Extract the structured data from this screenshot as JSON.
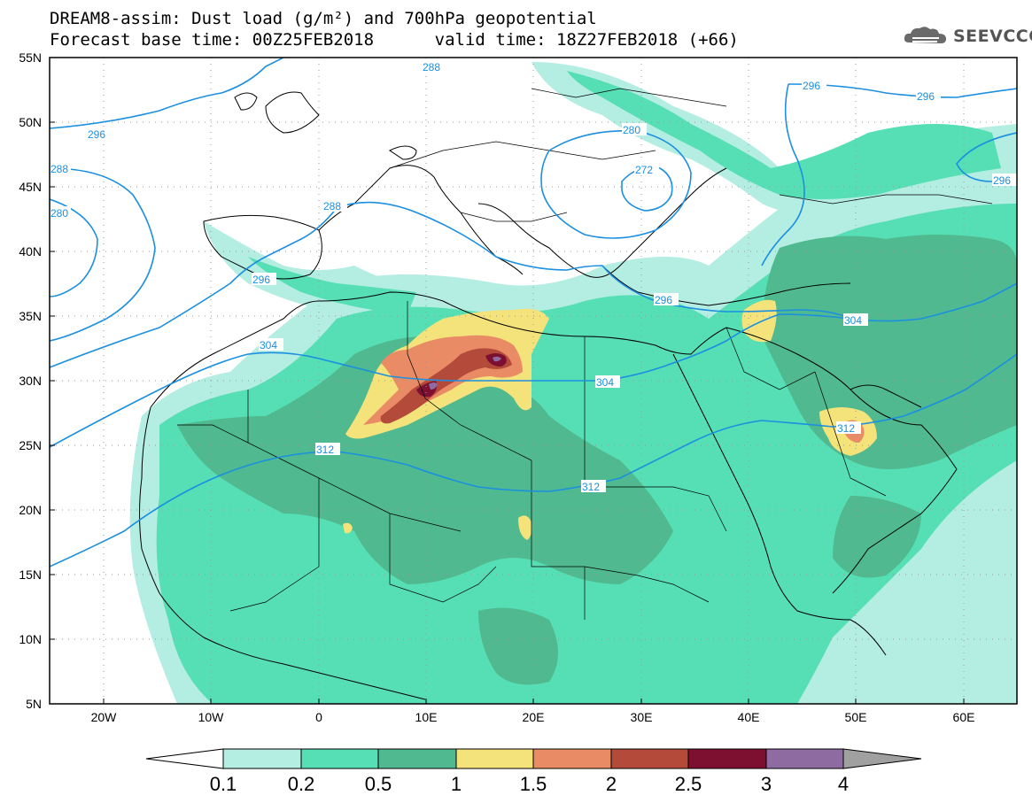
{
  "header": {
    "line1": "DREAM8-assim: Dust load (g/m²) and 700hPa geopotential",
    "line2": "Forecast base time: 00Z25FEB2018      valid time: 18Z27FEB2018 (+66)"
  },
  "logo": {
    "text": "SEEVCCC",
    "icon": "cloud-icon"
  },
  "map": {
    "lat_labels": [
      "55N",
      "50N",
      "45N",
      "40N",
      "35N",
      "30N",
      "25N",
      "20N",
      "15N",
      "10N",
      "5N"
    ],
    "lon_labels": [
      "20W",
      "10W",
      "0",
      "10E",
      "20E",
      "30E",
      "40E",
      "50E",
      "60E"
    ],
    "contour_labels": [
      "288",
      "296",
      "296",
      "296",
      "280",
      "272",
      "296",
      "288",
      "280",
      "288",
      "296",
      "296",
      "304",
      "304",
      "304",
      "312",
      "312",
      "312"
    ],
    "contour_color": "#1b8fe0"
  },
  "colorbar": {
    "ticks": [
      "0.1",
      "0.2",
      "0.5",
      "1",
      "1.5",
      "2",
      "2.5",
      "3",
      "4"
    ],
    "colors": [
      "#b4ede2",
      "#56deb4",
      "#50b98f",
      "#f4e27a",
      "#e98b65",
      "#b44a3a",
      "#7d1030",
      "#8e6ba1"
    ]
  }
}
